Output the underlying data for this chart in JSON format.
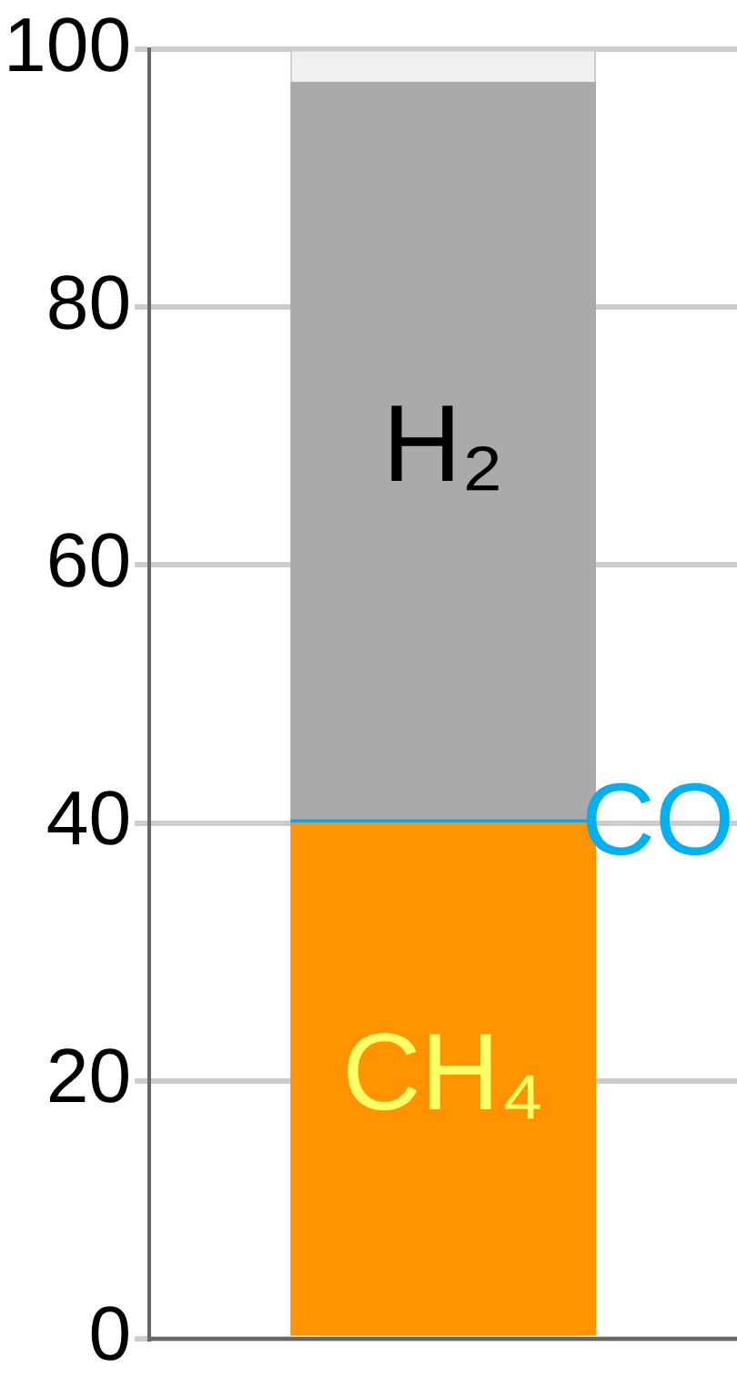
{
  "chart_data": {
    "type": "bar",
    "stacked": true,
    "categories": [
      null
    ],
    "series": [
      {
        "name": "CH₄",
        "color": "#ff9400",
        "values": [
          40
        ]
      },
      {
        "name": "CO",
        "color": "#1a9fe0",
        "values": [
          0.3
        ]
      },
      {
        "name": "H₂",
        "color": "#aaaaaa",
        "values": [
          57.2
        ]
      },
      {
        "color": "#f0f0f0",
        "values": [
          2.5
        ]
      }
    ],
    "ylim": [
      0,
      100
    ],
    "yticks": [
      0,
      20,
      40,
      60,
      80,
      100
    ],
    "grid": "y",
    "legend": false
  }
}
